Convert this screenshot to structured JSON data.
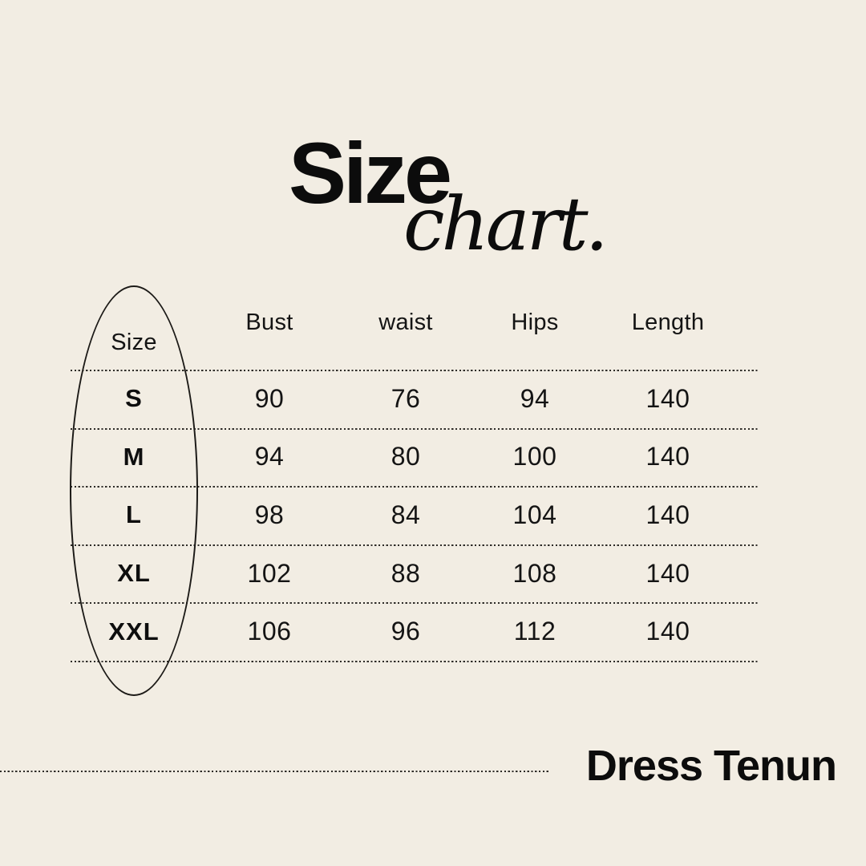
{
  "page": {
    "background_color": "#f2ede3",
    "ink_color": "#111111",
    "canvas_size": "1080x1080"
  },
  "title": {
    "main": "Size",
    "script": "chart."
  },
  "table": {
    "columns": [
      "Size",
      "Bust",
      "waist",
      "Hips",
      "Length"
    ],
    "rows": [
      [
        "S",
        "90",
        "76",
        "94",
        "140"
      ],
      [
        "M",
        "94",
        "80",
        "100",
        "140"
      ],
      [
        "L",
        "98",
        "84",
        "104",
        "140"
      ],
      [
        "XL",
        "102",
        "88",
        "108",
        "140"
      ],
      [
        "XXL",
        "106",
        "96",
        "112",
        "140"
      ]
    ]
  },
  "decorations": {
    "ellipse_highlight_column": "Size",
    "separator_style": "dotted"
  },
  "footer": {
    "product_name": "Dress Tenun"
  },
  "chart_data": {
    "type": "table",
    "title": "Size chart.",
    "columns": [
      "Size",
      "Bust",
      "waist",
      "Hips",
      "Length"
    ],
    "rows": [
      [
        "S",
        90,
        76,
        94,
        140
      ],
      [
        "M",
        94,
        80,
        100,
        140
      ],
      [
        "L",
        98,
        84,
        104,
        140
      ],
      [
        "XL",
        102,
        88,
        108,
        140
      ],
      [
        "XXL",
        106,
        96,
        112,
        140
      ]
    ],
    "footer_label": "Dress Tenun"
  }
}
